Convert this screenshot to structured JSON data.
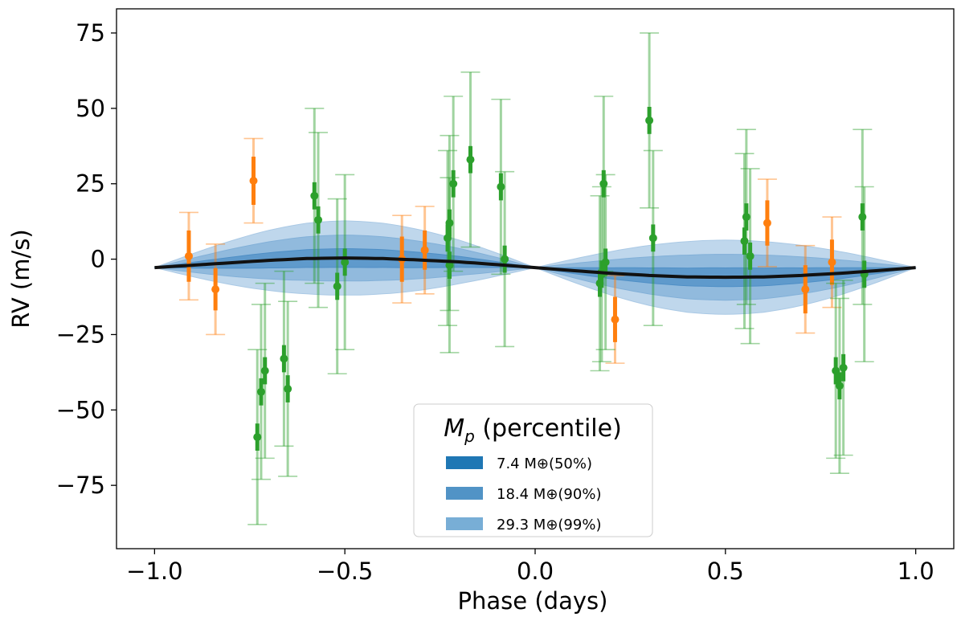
{
  "chart_data": {
    "type": "scatter",
    "xlabel": "Phase (days)",
    "ylabel": "RV (m/s)",
    "xlim": [
      -1.1,
      1.1
    ],
    "ylim": [
      -96,
      83
    ],
    "x_ticks": [
      -1.0,
      -0.5,
      0.0,
      0.5,
      1.0
    ],
    "x_tick_labels": [
      "−1.0",
      "−0.5",
      "0.0",
      "0.5",
      "1.0"
    ],
    "y_ticks": [
      75,
      50,
      25,
      0,
      -25,
      -50,
      -75
    ],
    "y_tick_labels": [
      "75",
      "50",
      "25",
      "0",
      "−25",
      "−50",
      "−75"
    ],
    "grid": false,
    "legend": {
      "placement": "lower-center",
      "title_symbol": "M",
      "title_subscript": "p",
      "title_rest": " (percentile)",
      "entries": [
        {
          "text": "7.4 M⊕(50%)",
          "color": "#1f77b4",
          "opacity": 1.0
        },
        {
          "text": "18.4 M⊕(90%)",
          "color": "#3e87c0",
          "opacity": 0.9
        },
        {
          "text": "29.3 M⊕(99%)",
          "color": "#78aed6",
          "opacity": 1.0
        }
      ]
    },
    "model_curve": {
      "color": "#111111",
      "x": [
        -1.0,
        -0.9,
        -0.8,
        -0.7,
        -0.6,
        -0.5,
        -0.4,
        -0.3,
        -0.2,
        -0.1,
        0.0,
        0.1,
        0.2,
        0.3,
        0.4,
        0.5,
        0.6,
        0.7,
        0.8,
        0.9,
        1.0
      ],
      "y": [
        -2.8,
        -2.0,
        -1.2,
        -0.4,
        0.2,
        0.4,
        0.2,
        -0.3,
        -0.9,
        -1.8,
        -2.8,
        -3.8,
        -4.7,
        -5.4,
        -5.9,
        -6.0,
        -5.9,
        -5.4,
        -4.7,
        -3.8,
        -2.8
      ]
    },
    "bands": [
      {
        "name": "99%",
        "color": "#aac9e5",
        "amplitude": 12.3
      },
      {
        "name": "90%",
        "color": "#82b0d8",
        "amplitude": 7.6
      },
      {
        "name": "50%",
        "color": "#4f8fc6",
        "amplitude": 3.1
      }
    ],
    "series": [
      {
        "color": "#ff7f0e",
        "points": [
          {
            "x": -0.91,
            "y": 1,
            "err": 8.5,
            "jit": 14.5
          },
          {
            "x": -0.84,
            "y": -10,
            "err": 7,
            "jit": 15
          },
          {
            "x": -0.74,
            "y": 26,
            "err": 8,
            "jit": 14
          },
          {
            "x": -0.35,
            "y": 0,
            "err": 7.5,
            "jit": 14.5
          },
          {
            "x": -0.29,
            "y": 3,
            "err": 6.5,
            "jit": 14.5
          },
          {
            "x": 0.21,
            "y": -20,
            "err": 7.5,
            "jit": 14.5
          },
          {
            "x": 0.61,
            "y": 12,
            "err": 7.5,
            "jit": 14.5
          },
          {
            "x": 0.71,
            "y": -10,
            "err": 8,
            "jit": 14.5
          },
          {
            "x": 0.78,
            "y": -1,
            "err": 7.5,
            "jit": 15
          }
        ]
      },
      {
        "color": "#2ca02c",
        "points": [
          {
            "x": -0.73,
            "y": -59,
            "err": 4.5,
            "jit": 29
          },
          {
            "x": -0.72,
            "y": -44,
            "err": 4.5,
            "jit": 29
          },
          {
            "x": -0.71,
            "y": -37,
            "err": 4.5,
            "jit": 29
          },
          {
            "x": -0.66,
            "y": -33,
            "err": 4.5,
            "jit": 29
          },
          {
            "x": -0.65,
            "y": -43,
            "err": 4.5,
            "jit": 29
          },
          {
            "x": -0.58,
            "y": 21,
            "err": 4.5,
            "jit": 29
          },
          {
            "x": -0.57,
            "y": 13,
            "err": 4.5,
            "jit": 29
          },
          {
            "x": -0.52,
            "y": -9,
            "err": 4.5,
            "jit": 29
          },
          {
            "x": -0.5,
            "y": -1,
            "err": 4.5,
            "jit": 29
          },
          {
            "x": -0.23,
            "y": 7,
            "err": 4.5,
            "jit": 29
          },
          {
            "x": -0.225,
            "y": 12,
            "err": 4.5,
            "jit": 29
          },
          {
            "x": -0.215,
            "y": 25,
            "err": 4.5,
            "jit": 29
          },
          {
            "x": -0.225,
            "y": -2,
            "err": 4.5,
            "jit": 29
          },
          {
            "x": -0.17,
            "y": 33,
            "err": 4.5,
            "jit": 29
          },
          {
            "x": -0.09,
            "y": 24,
            "err": 4.5,
            "jit": 29
          },
          {
            "x": -0.08,
            "y": 0,
            "err": 4.5,
            "jit": 29
          },
          {
            "x": 0.17,
            "y": -8,
            "err": 4.5,
            "jit": 29
          },
          {
            "x": 0.175,
            "y": -5,
            "err": 4.5,
            "jit": 29
          },
          {
            "x": 0.18,
            "y": 25,
            "err": 4.5,
            "jit": 29
          },
          {
            "x": 0.185,
            "y": -1,
            "err": 4.5,
            "jit": 29
          },
          {
            "x": 0.3,
            "y": 46,
            "err": 4.5,
            "jit": 29
          },
          {
            "x": 0.31,
            "y": 7,
            "err": 4.5,
            "jit": 29
          },
          {
            "x": 0.55,
            "y": 6,
            "err": 4.5,
            "jit": 29
          },
          {
            "x": 0.555,
            "y": 14,
            "err": 4.5,
            "jit": 29
          },
          {
            "x": 0.565,
            "y": 1,
            "err": 4.5,
            "jit": 29
          },
          {
            "x": 0.79,
            "y": -37,
            "err": 4.5,
            "jit": 29
          },
          {
            "x": 0.8,
            "y": -42,
            "err": 4.5,
            "jit": 29
          },
          {
            "x": 0.81,
            "y": -36,
            "err": 4.5,
            "jit": 29
          },
          {
            "x": 0.86,
            "y": 14,
            "err": 4.5,
            "jit": 29
          },
          {
            "x": 0.865,
            "y": -5,
            "err": 4.5,
            "jit": 29
          }
        ]
      }
    ]
  }
}
